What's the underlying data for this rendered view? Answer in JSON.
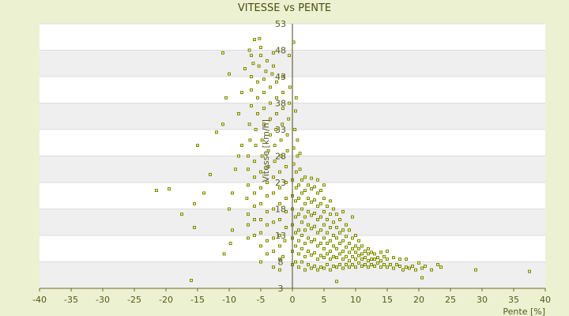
{
  "chart_data": {
    "type": "scatter",
    "title": "VITESSE vs PENTE",
    "xlabel": "Pente [%]",
    "ylabel": "Vitesse [km/h]",
    "xlim": [
      -40,
      40
    ],
    "ylim": [
      3,
      53
    ],
    "x_ticks": [
      "-40",
      "-35",
      "-30",
      "-25",
      "-20",
      "-15",
      "-10",
      "-5",
      "0",
      "5",
      "10",
      "15",
      "20",
      "25",
      "30",
      "35",
      "40"
    ],
    "y_ticks": [
      "3",
      "8",
      "13",
      "18",
      "23",
      "28",
      "33",
      "38",
      "43",
      "48",
      "53"
    ],
    "grid": true,
    "legend": "none",
    "colors": {
      "point_fill": "#ffff66",
      "point_stroke": "#5a6a00",
      "band": "#efefef",
      "background": "#ecf1d2"
    },
    "series": [
      {
        "points": [
          [
            -16,
            4.5
          ],
          [
            -10.8,
            9.5
          ],
          [
            -15.5,
            14.5
          ],
          [
            -17.5,
            17
          ],
          [
            -21.5,
            21.5
          ],
          [
            -19.5,
            21.8
          ],
          [
            -14,
            21
          ],
          [
            -15.5,
            19
          ],
          [
            -13,
            24.5
          ],
          [
            -15,
            30
          ],
          [
            -12,
            32.5
          ],
          [
            -11,
            34
          ],
          [
            -10.5,
            39
          ],
          [
            -10,
            43.5
          ],
          [
            -11,
            47.5
          ],
          [
            -9.8,
            11.5
          ],
          [
            -10,
            18
          ],
          [
            -9.5,
            21
          ],
          [
            -9.5,
            14
          ],
          [
            -9,
            25.5
          ],
          [
            -8.5,
            28
          ],
          [
            -8,
            30
          ],
          [
            -8.5,
            36
          ],
          [
            -8,
            40
          ],
          [
            -7.5,
            44.5
          ],
          [
            -6.8,
            48
          ],
          [
            -6,
            50
          ],
          [
            -6.5,
            47
          ],
          [
            -5.2,
            50.2
          ],
          [
            -5,
            48.5
          ],
          [
            -7,
            12.5
          ],
          [
            -7,
            15
          ],
          [
            -7,
            17
          ],
          [
            -7.2,
            20
          ],
          [
            -7,
            22.5
          ],
          [
            -7,
            25.5
          ],
          [
            -7,
            28
          ],
          [
            -6.7,
            31
          ],
          [
            -6.8,
            34
          ],
          [
            -6.5,
            37.5
          ],
          [
            -6.5,
            40.5
          ],
          [
            -6.5,
            43
          ],
          [
            -6.2,
            45.5
          ],
          [
            -6,
            13
          ],
          [
            -6,
            16
          ],
          [
            -6,
            18.5
          ],
          [
            -6,
            21
          ],
          [
            -6,
            24
          ],
          [
            -6,
            27
          ],
          [
            -5.8,
            30
          ],
          [
            -5.8,
            33
          ],
          [
            -5.5,
            36
          ],
          [
            -5.5,
            39
          ],
          [
            -5.5,
            42
          ],
          [
            -5.3,
            45
          ],
          [
            -5,
            47
          ],
          [
            -5,
            8
          ],
          [
            -5,
            11
          ],
          [
            -5,
            13.5
          ],
          [
            -5,
            16
          ],
          [
            -5,
            19
          ],
          [
            -5,
            22
          ],
          [
            -5,
            25
          ],
          [
            -4.8,
            28
          ],
          [
            -4.8,
            31
          ],
          [
            -4.5,
            34
          ],
          [
            -4.5,
            37
          ],
          [
            -4.5,
            40
          ],
          [
            -4.5,
            42.5
          ],
          [
            -4.2,
            44
          ],
          [
            -4,
            46
          ],
          [
            -4,
            9.5
          ],
          [
            -4,
            12
          ],
          [
            -4,
            15
          ],
          [
            -4,
            17.5
          ],
          [
            -4,
            20.5
          ],
          [
            -4,
            23
          ],
          [
            -3.8,
            26
          ],
          [
            -3.8,
            29
          ],
          [
            -3.5,
            32
          ],
          [
            -3.5,
            35
          ],
          [
            -3.5,
            38
          ],
          [
            -3.5,
            41
          ],
          [
            -3.2,
            43.5
          ],
          [
            -3,
            45
          ],
          [
            -3,
            47.5
          ],
          [
            -3,
            7
          ],
          [
            -3,
            10
          ],
          [
            -3,
            12.5
          ],
          [
            -3,
            15.5
          ],
          [
            -3,
            18
          ],
          [
            -3,
            21
          ],
          [
            -3,
            24
          ],
          [
            -2.8,
            27
          ],
          [
            -2.8,
            30
          ],
          [
            -2.6,
            33
          ],
          [
            -2.5,
            36
          ],
          [
            -2.5,
            39
          ],
          [
            -2.5,
            42
          ],
          [
            -2,
            8.5
          ],
          [
            -2,
            11
          ],
          [
            -2,
            13
          ],
          [
            -2,
            16
          ],
          [
            -2,
            19
          ],
          [
            -2,
            22
          ],
          [
            -2,
            25
          ],
          [
            -1.8,
            28
          ],
          [
            -1.8,
            31
          ],
          [
            -1.6,
            34
          ],
          [
            -1.5,
            37
          ],
          [
            -1.5,
            40
          ],
          [
            -1.5,
            43
          ],
          [
            -2,
            6.5
          ],
          [
            -1.5,
            9
          ],
          [
            -1.2,
            12
          ],
          [
            -1,
            14.5
          ],
          [
            -1,
            17.5
          ],
          [
            -1,
            20
          ],
          [
            -1,
            23
          ],
          [
            -1,
            26
          ],
          [
            -0.8,
            29
          ],
          [
            -0.8,
            32
          ],
          [
            -0.6,
            35
          ],
          [
            -0.5,
            38
          ],
          [
            -0.4,
            41
          ],
          [
            0.2,
            49.5
          ],
          [
            -0.5,
            47
          ],
          [
            0,
            7.5
          ],
          [
            0,
            10
          ],
          [
            0,
            12.5
          ],
          [
            0,
            15
          ],
          [
            0,
            18
          ],
          [
            0,
            20.5
          ],
          [
            0,
            23.5
          ],
          [
            0.2,
            26.5
          ],
          [
            0.2,
            29.5
          ],
          [
            0.4,
            33
          ],
          [
            0.5,
            36.5
          ],
          [
            0.6,
            39
          ],
          [
            0.5,
            8
          ],
          [
            0.5,
            11
          ],
          [
            0.5,
            13.5
          ],
          [
            0.5,
            16.5
          ],
          [
            0.5,
            19.5
          ],
          [
            0.6,
            22
          ],
          [
            0.6,
            25
          ],
          [
            0.8,
            28
          ],
          [
            0.8,
            31
          ],
          [
            1,
            7
          ],
          [
            1,
            9.5
          ],
          [
            1,
            12
          ],
          [
            1,
            14
          ],
          [
            1,
            17
          ],
          [
            1,
            20
          ],
          [
            1,
            22.5
          ],
          [
            1.2,
            25.5
          ],
          [
            1.2,
            28.5
          ],
          [
            1.5,
            8
          ],
          [
            1.5,
            10.5
          ],
          [
            1.5,
            13
          ],
          [
            1.5,
            15.5
          ],
          [
            1.5,
            18
          ],
          [
            1.5,
            21
          ],
          [
            1.5,
            23.5
          ],
          [
            2,
            6.5
          ],
          [
            2,
            9
          ],
          [
            2,
            11.5
          ],
          [
            2,
            14
          ],
          [
            2,
            16.5
          ],
          [
            2,
            19
          ],
          [
            2,
            21.5
          ],
          [
            2,
            24
          ],
          [
            2.5,
            7.5
          ],
          [
            2.5,
            10
          ],
          [
            2.5,
            12.5
          ],
          [
            2.5,
            15
          ],
          [
            2.5,
            17.5
          ],
          [
            2.5,
            20
          ],
          [
            2.5,
            22.5
          ],
          [
            3,
            6.8
          ],
          [
            3,
            9.3
          ],
          [
            3,
            11.8
          ],
          [
            3,
            14.3
          ],
          [
            3,
            16.8
          ],
          [
            3,
            19.3
          ],
          [
            3,
            21.8
          ],
          [
            3,
            23.8
          ],
          [
            3.5,
            7.2
          ],
          [
            3.5,
            9.7
          ],
          [
            3.5,
            12.2
          ],
          [
            3.5,
            14.7
          ],
          [
            3.5,
            17.2
          ],
          [
            3.5,
            19.7
          ],
          [
            3.5,
            22.2
          ],
          [
            4,
            6.5
          ],
          [
            4,
            8.5
          ],
          [
            4,
            11
          ],
          [
            4,
            13.5
          ],
          [
            4,
            16
          ],
          [
            4,
            18.5
          ],
          [
            4,
            21
          ],
          [
            4,
            23.5
          ],
          [
            4.5,
            7
          ],
          [
            4.5,
            9.2
          ],
          [
            4.5,
            11.5
          ],
          [
            4.5,
            14
          ],
          [
            4.5,
            16.5
          ],
          [
            4.5,
            19
          ],
          [
            4.5,
            21.5
          ],
          [
            5,
            6.8
          ],
          [
            5,
            8.8
          ],
          [
            5,
            10.5
          ],
          [
            5,
            12.5
          ],
          [
            5,
            15
          ],
          [
            5,
            17.5
          ],
          [
            5,
            20
          ],
          [
            5,
            22.5
          ],
          [
            5.5,
            7.5
          ],
          [
            5.5,
            9.5
          ],
          [
            5.5,
            11.5
          ],
          [
            5.5,
            13.5
          ],
          [
            5.5,
            16
          ],
          [
            5.5,
            18.5
          ],
          [
            6,
            6.5
          ],
          [
            6,
            8.5
          ],
          [
            6,
            10
          ],
          [
            6,
            12
          ],
          [
            6,
            14.5
          ],
          [
            6,
            17
          ],
          [
            6,
            19.5
          ],
          [
            6.5,
            7.2
          ],
          [
            6.5,
            9
          ],
          [
            6.5,
            11
          ],
          [
            6.5,
            13
          ],
          [
            6.5,
            15.5
          ],
          [
            6.5,
            18
          ],
          [
            7,
            4.3
          ],
          [
            7,
            7
          ],
          [
            7,
            8.8
          ],
          [
            7,
            10.5
          ],
          [
            7,
            12.5
          ],
          [
            7,
            14.5
          ],
          [
            7,
            17
          ],
          [
            7.5,
            7.5
          ],
          [
            7.5,
            9.5
          ],
          [
            7.5,
            11.5
          ],
          [
            7.5,
            13.5
          ],
          [
            7.5,
            16
          ],
          [
            8,
            6.8
          ],
          [
            8,
            8.5
          ],
          [
            8,
            10
          ],
          [
            8,
            12
          ],
          [
            8,
            14
          ],
          [
            8,
            17.5
          ],
          [
            8.5,
            7.5
          ],
          [
            8.5,
            9
          ],
          [
            8.5,
            10.8
          ],
          [
            8.5,
            12.8
          ],
          [
            8.5,
            15
          ],
          [
            9,
            7
          ],
          [
            9,
            8.2
          ],
          [
            9,
            9.8
          ],
          [
            9,
            11.5
          ],
          [
            9,
            14
          ],
          [
            9.5,
            7.5
          ],
          [
            9.5,
            9
          ],
          [
            9.5,
            10.5
          ],
          [
            9.5,
            12.5
          ],
          [
            9.5,
            16.5
          ],
          [
            10,
            7
          ],
          [
            10,
            8.5
          ],
          [
            10,
            9.8
          ],
          [
            10,
            11
          ],
          [
            10,
            13
          ],
          [
            10.5,
            7.8
          ],
          [
            10.5,
            9.2
          ],
          [
            10.5,
            10.5
          ],
          [
            10.5,
            12
          ],
          [
            11,
            7.2
          ],
          [
            11,
            8.5
          ],
          [
            11,
            9.5
          ],
          [
            11,
            11
          ],
          [
            11.5,
            7.5
          ],
          [
            11.5,
            8.8
          ],
          [
            11.5,
            10
          ],
          [
            12,
            7
          ],
          [
            12,
            8.2
          ],
          [
            12,
            9.5
          ],
          [
            12,
            10.5
          ],
          [
            12.5,
            7.5
          ],
          [
            12.5,
            8.5
          ],
          [
            12.5,
            9.8
          ],
          [
            13,
            7.2
          ],
          [
            13,
            8.5
          ],
          [
            13,
            9.5
          ],
          [
            13.5,
            7.8
          ],
          [
            13.5,
            8.8
          ],
          [
            14,
            7
          ],
          [
            14,
            8.2
          ],
          [
            14,
            9.8
          ],
          [
            14.5,
            7.5
          ],
          [
            14.5,
            9
          ],
          [
            15,
            7
          ],
          [
            15,
            8.5
          ],
          [
            15,
            10
          ],
          [
            15.5,
            7.5
          ],
          [
            16,
            6.8
          ],
          [
            16,
            8.8
          ],
          [
            16.5,
            7.5
          ],
          [
            17,
            7.2
          ],
          [
            17,
            8.5
          ],
          [
            17.5,
            6.5
          ],
          [
            18,
            7
          ],
          [
            18,
            8.5
          ],
          [
            18.5,
            6.8
          ],
          [
            19,
            7.2
          ],
          [
            19.5,
            6.5
          ],
          [
            20,
            7.8
          ],
          [
            20.5,
            6.8
          ],
          [
            20.5,
            5
          ],
          [
            21,
            7.2
          ],
          [
            22,
            6.5
          ],
          [
            23,
            7.5
          ],
          [
            23.5,
            7
          ],
          [
            29,
            6.5
          ],
          [
            37.5,
            6.2
          ]
        ]
      }
    ]
  }
}
